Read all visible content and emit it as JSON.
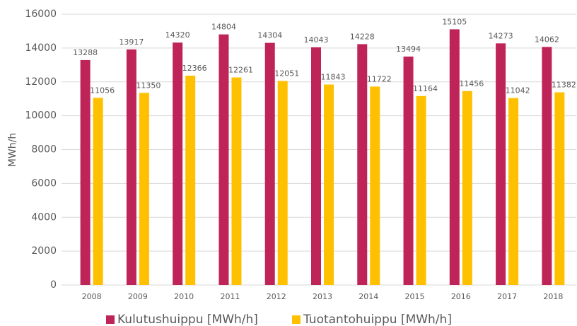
{
  "chart_data": {
    "type": "bar",
    "categories": [
      "2008",
      "2009",
      "2010",
      "2011",
      "2012",
      "2013",
      "2014",
      "2015",
      "2016",
      "2017",
      "2018"
    ],
    "series": [
      {
        "name": "Kulutushuippu [MWh/h]",
        "color": "#be2457",
        "values": [
          13288,
          13917,
          14320,
          14804,
          14304,
          14043,
          14228,
          13494,
          15105,
          14273,
          14062
        ]
      },
      {
        "name": "Tuotantohuippu [MWh/h]",
        "color": "#ffc000",
        "values": [
          11056,
          11350,
          12366,
          12261,
          12051,
          11843,
          11722,
          11164,
          11456,
          11042,
          11382
        ]
      }
    ],
    "y_label": "MWh/h",
    "ylim": [
      0,
      16000
    ],
    "yticks": [
      0,
      2000,
      4000,
      6000,
      8000,
      10000,
      12000,
      14000,
      16000
    ],
    "grid": true,
    "legend": "bottom"
  }
}
